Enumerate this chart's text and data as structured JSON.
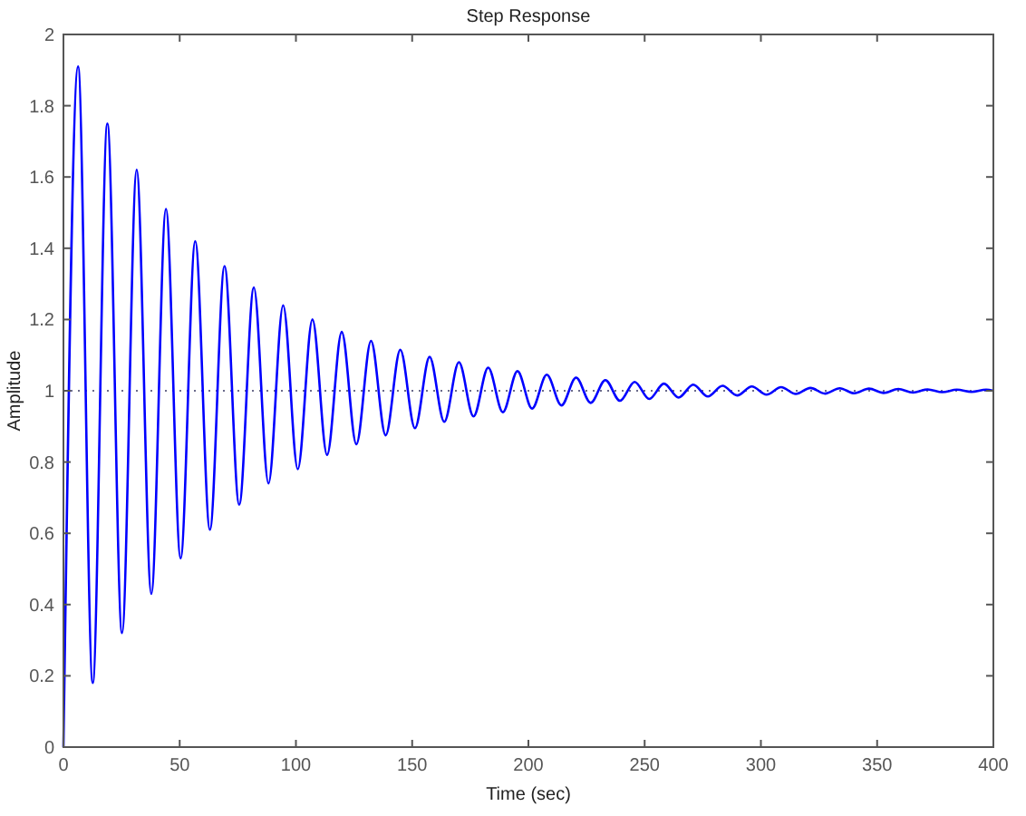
{
  "chart_data": {
    "type": "line",
    "title": "Step Response",
    "xlabel": "Time (sec)",
    "ylabel": "Amplitude",
    "x": [
      0,
      6.3,
      12.6,
      18.9,
      25.2,
      31.5,
      37.8,
      44.1,
      50.4,
      56.7,
      63,
      69.3,
      75.6,
      81.9,
      88.2,
      94.5,
      100.8,
      107.1,
      113.4,
      119.7,
      126,
      132.3,
      138.6,
      144.9,
      151.2,
      157.5,
      163.8,
      170.1,
      176.4,
      182.7,
      189,
      195.3,
      201.6,
      207.9,
      214.2,
      220.5,
      226.8,
      233.1,
      239.4,
      245.7,
      252,
      258.3,
      264.6,
      270.9,
      277.2,
      283.5,
      289.8,
      296.1,
      302.4,
      308.7,
      315,
      321.3,
      327.6,
      333.9,
      340.2,
      346.5,
      352.8,
      359.1,
      365.4,
      371.7,
      378,
      384.3,
      390.6,
      396.9,
      400
    ],
    "series": [
      {
        "color": "#0000ff",
        "values": [
          0,
          1.91,
          0.18,
          1.75,
          0.32,
          1.62,
          0.43,
          1.51,
          0.53,
          1.42,
          0.61,
          1.35,
          0.68,
          1.29,
          0.74,
          1.24,
          0.78,
          1.2,
          0.82,
          1.165,
          0.85,
          1.14,
          0.875,
          1.115,
          0.895,
          1.095,
          0.913,
          1.08,
          0.928,
          1.065,
          0.94,
          1.055,
          0.95,
          1.045,
          0.959,
          1.037,
          0.966,
          1.03,
          0.972,
          1.025,
          0.977,
          1.02,
          0.981,
          1.017,
          0.984,
          1.014,
          0.987,
          1.012,
          0.989,
          1.01,
          0.991,
          1.008,
          0.992,
          1.007,
          0.993,
          1.006,
          0.994,
          1.005,
          0.995,
          1.004,
          0.996,
          1.003,
          0.997,
          1.003,
          1.0
        ]
      }
    ],
    "xlim": [
      0,
      400
    ],
    "xticks": [
      0,
      50,
      100,
      150,
      200,
      250,
      300,
      350,
      400
    ],
    "ylim": [
      0,
      2
    ],
    "yticks": [
      0,
      0.2,
      0.4,
      0.6,
      0.8,
      1,
      1.2,
      1.4,
      1.6,
      1.8,
      2
    ],
    "ref_lines": [
      {
        "axis": "y",
        "value": 1,
        "color": "#6a6a8a",
        "line_style": "dotted"
      }
    ],
    "grid": false,
    "marker": "none",
    "line_style": "solid"
  }
}
